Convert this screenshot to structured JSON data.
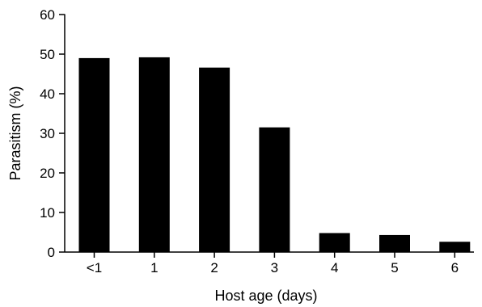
{
  "chart_data": {
    "type": "bar",
    "categories": [
      "<1",
      "1",
      "2",
      "3",
      "4",
      "5",
      "6"
    ],
    "values": [
      49,
      49.2,
      46.6,
      31.5,
      4.8,
      4.3,
      2.6
    ],
    "xlabel": "Host age (days)",
    "ylabel": "Parasitism (%)",
    "ylim": [
      0,
      60
    ],
    "yticks": [
      "0",
      "10",
      "20",
      "30",
      "40",
      "50",
      "60"
    ],
    "grid": false,
    "legend": "none",
    "bar_color": "#000000",
    "axis_color": "#000000"
  }
}
